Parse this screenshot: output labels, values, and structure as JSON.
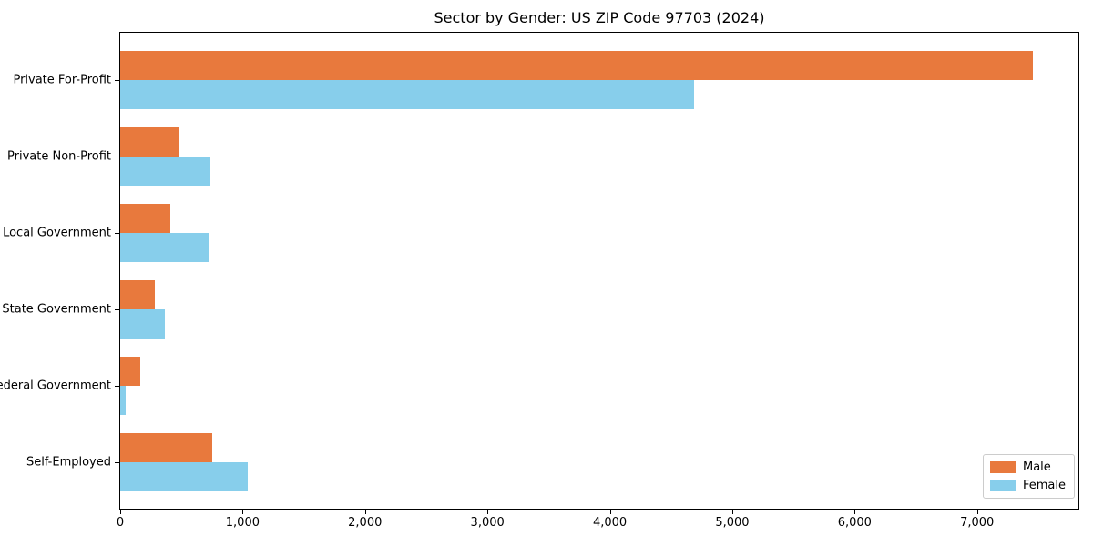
{
  "figure": {
    "title": "Sector by Gender: US ZIP Code 97703 (2024)"
  },
  "chart_data": {
    "type": "bar",
    "orientation": "horizontal",
    "title": "Sector by Gender: US ZIP Code 97703 (2024)",
    "categories": [
      "Private For-Profit",
      "Private Non-Profit",
      "Local Government",
      "State Government",
      "Federal Government",
      "Self-Employed"
    ],
    "series": [
      {
        "name": "Male",
        "color": "#E8793D",
        "values": [
          7455,
          485,
          410,
          280,
          160,
          750
        ]
      },
      {
        "name": "Female",
        "color": "#87CEEB",
        "values": [
          4685,
          740,
          720,
          365,
          45,
          1040
        ]
      }
    ],
    "xlabel": "",
    "ylabel": "",
    "xlim": [
      0,
      7828
    ],
    "x_ticks": [
      0,
      1000,
      2000,
      3000,
      4000,
      5000,
      6000,
      7000
    ],
    "x_tick_labels": [
      "0",
      "1,000",
      "2,000",
      "3,000",
      "4,000",
      "5,000",
      "6,000",
      "7,000"
    ],
    "grid": false,
    "legend_position": "lower right"
  }
}
